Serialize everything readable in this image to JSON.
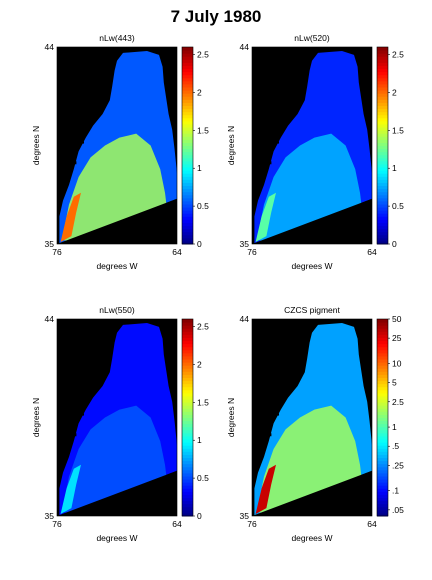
{
  "figure": {
    "title": "7 July 1980"
  },
  "chart_data": [
    {
      "type": "heatmap",
      "title": "nLw(443)",
      "xlabel": "degrees W",
      "ylabel": "degrees N",
      "xticks": [
        "76",
        "64"
      ],
      "yticks": [
        "44",
        "35"
      ],
      "xlim": [
        76,
        64
      ],
      "ylim": [
        35,
        44
      ],
      "colorbar": {
        "scale": "linear",
        "range": [
          0,
          2.6
        ],
        "ticks": [
          0,
          0.5,
          1,
          1.5,
          2,
          2.5
        ],
        "labels": [
          "0",
          "0.5",
          "1",
          "1.5",
          "2",
          "2.5"
        ]
      },
      "summary": {
        "offshore": 0.55,
        "shelf": 1.4,
        "nearshore_max": 2.0
      }
    },
    {
      "type": "heatmap",
      "title": "nLw(520)",
      "xlabel": "degrees W",
      "ylabel": "degrees N",
      "xticks": [
        "76",
        "64"
      ],
      "yticks": [
        "44",
        "35"
      ],
      "xlim": [
        76,
        64
      ],
      "ylim": [
        35,
        44
      ],
      "colorbar": {
        "scale": "linear",
        "range": [
          0,
          2.6
        ],
        "ticks": [
          0,
          0.5,
          1,
          1.5,
          2,
          2.5
        ],
        "labels": [
          "0",
          "0.5",
          "1",
          "1.5",
          "2",
          "2.5"
        ]
      },
      "summary": {
        "offshore": 0.42,
        "shelf": 0.8,
        "nearshore_max": 1.2
      }
    },
    {
      "type": "heatmap",
      "title": "nLw(550)",
      "xlabel": "degrees W",
      "ylabel": "degrees N",
      "xticks": [
        "76",
        "64"
      ],
      "yticks": [
        "44",
        "35"
      ],
      "xlim": [
        76,
        64
      ],
      "ylim": [
        35,
        44
      ],
      "colorbar": {
        "scale": "linear",
        "range": [
          0,
          2.6
        ],
        "ticks": [
          0,
          0.5,
          1,
          1.5,
          2,
          2.5
        ],
        "labels": [
          "0",
          "0.5",
          "1",
          "1.5",
          "2",
          "2.5"
        ]
      },
      "summary": {
        "offshore": 0.35,
        "shelf": 0.55,
        "nearshore_max": 0.9
      }
    },
    {
      "type": "heatmap",
      "title": "CZCS pigment",
      "xlabel": "degrees W",
      "ylabel": "degrees N",
      "xticks": [
        "76",
        "64"
      ],
      "yticks": [
        "44",
        "35"
      ],
      "xlim": [
        76,
        64
      ],
      "ylim": [
        35,
        44
      ],
      "colorbar": {
        "scale": "log",
        "range": [
          0.04,
          50
        ],
        "ticks": [
          0.05,
          0.1,
          0.25,
          0.5,
          1,
          2.5,
          5,
          10,
          25,
          50
        ],
        "labels": [
          ".05",
          ".1",
          ".25",
          ".5",
          "1",
          "2.5",
          "5",
          "10",
          "25",
          "50"
        ]
      },
      "summary": {
        "offshore": 0.3,
        "shelf": 1.8,
        "nearshore_max": 30
      }
    }
  ]
}
